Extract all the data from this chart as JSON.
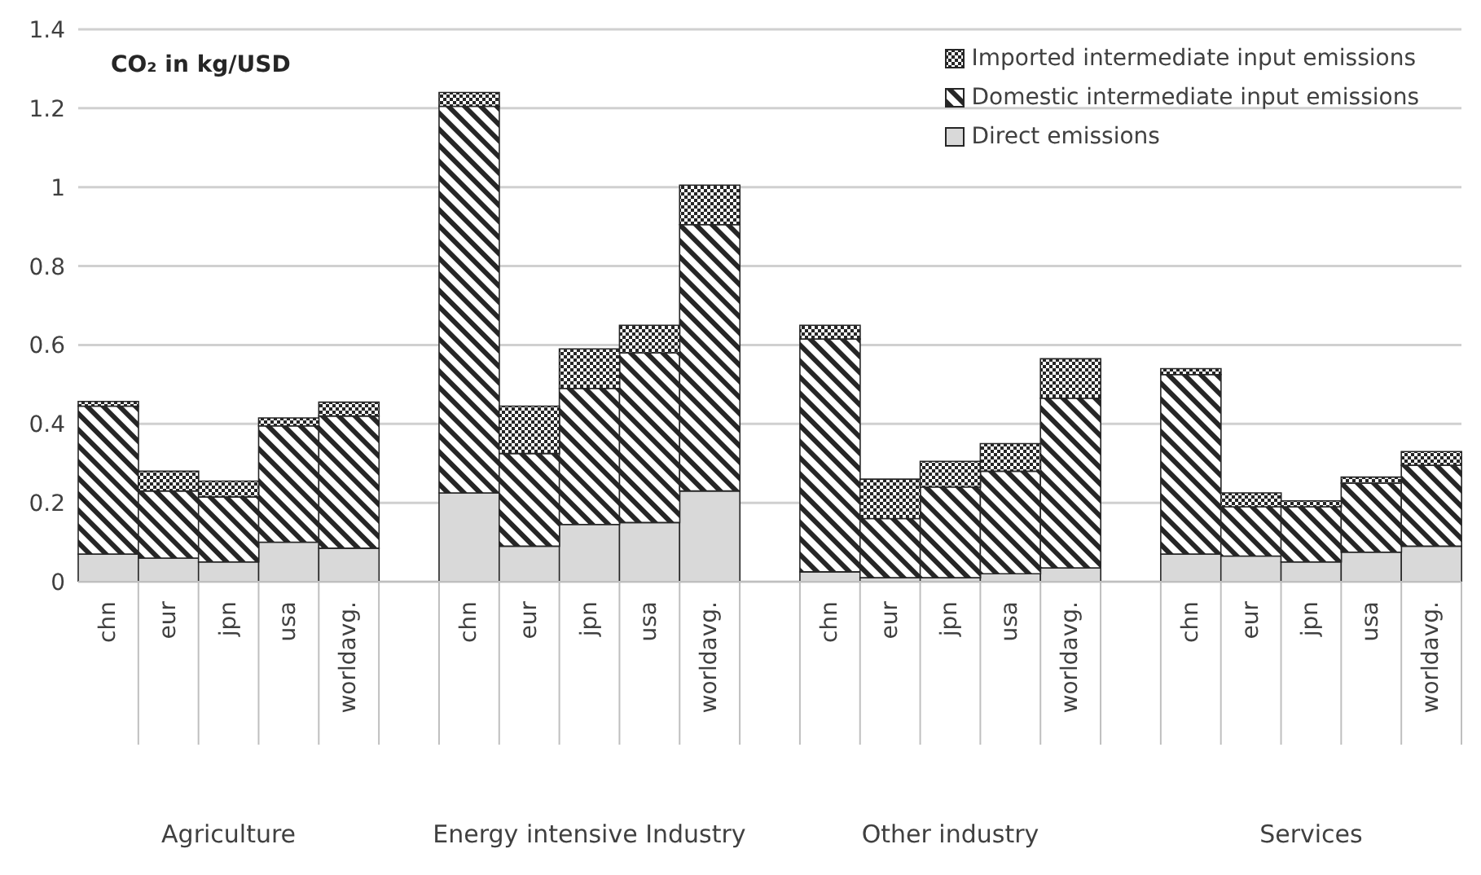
{
  "chart_data": {
    "type": "bar",
    "stacked": true,
    "ylabel": "CO₂ in kg/USD",
    "categories": [
      "chn",
      "eur",
      "jpn",
      "usa",
      "worldavg.",
      null,
      "chn",
      "eur",
      "jpn",
      "usa",
      "worldavg.",
      null,
      "chn",
      "eur",
      "jpn",
      "usa",
      "worldavg.",
      null,
      "chn",
      "eur",
      "jpn",
      "usa",
      "worldavg."
    ],
    "series": [
      {
        "name": "Direct emissions",
        "color": "#d9d9d9",
        "values": [
          0.07,
          0.06,
          0.05,
          0.1,
          0.085,
          null,
          0.225,
          0.09,
          0.145,
          0.15,
          0.23,
          null,
          0.025,
          0.01,
          0.01,
          0.02,
          0.035,
          null,
          0.07,
          0.065,
          0.05,
          0.075,
          0.09
        ]
      },
      {
        "name": "Domestic intermediate input emissions",
        "color": "#262626",
        "values": [
          0.375,
          0.17,
          0.165,
          0.295,
          0.335,
          null,
          0.98,
          0.235,
          0.345,
          0.43,
          0.675,
          null,
          0.59,
          0.15,
          0.23,
          0.26,
          0.43,
          null,
          0.455,
          0.125,
          0.14,
          0.175,
          0.205
        ]
      },
      {
        "name": "Imported intermediate input emissions",
        "color": "#262626",
        "values": [
          0.012,
          0.05,
          0.04,
          0.02,
          0.035,
          null,
          0.035,
          0.12,
          0.1,
          0.07,
          0.1,
          null,
          0.035,
          0.1,
          0.065,
          0.07,
          0.1,
          null,
          0.015,
          0.035,
          0.015,
          0.015,
          0.035
        ]
      }
    ],
    "ylim": [
      0,
      1.4
    ],
    "yticks": [
      0,
      0.2,
      0.4,
      0.6,
      0.8,
      1,
      1.2,
      1.4
    ],
    "grid": "y",
    "legend": "top right",
    "annotations": [
      "Agriculture",
      "Energy intensive Industry",
      "Other industry",
      "Services"
    ]
  }
}
